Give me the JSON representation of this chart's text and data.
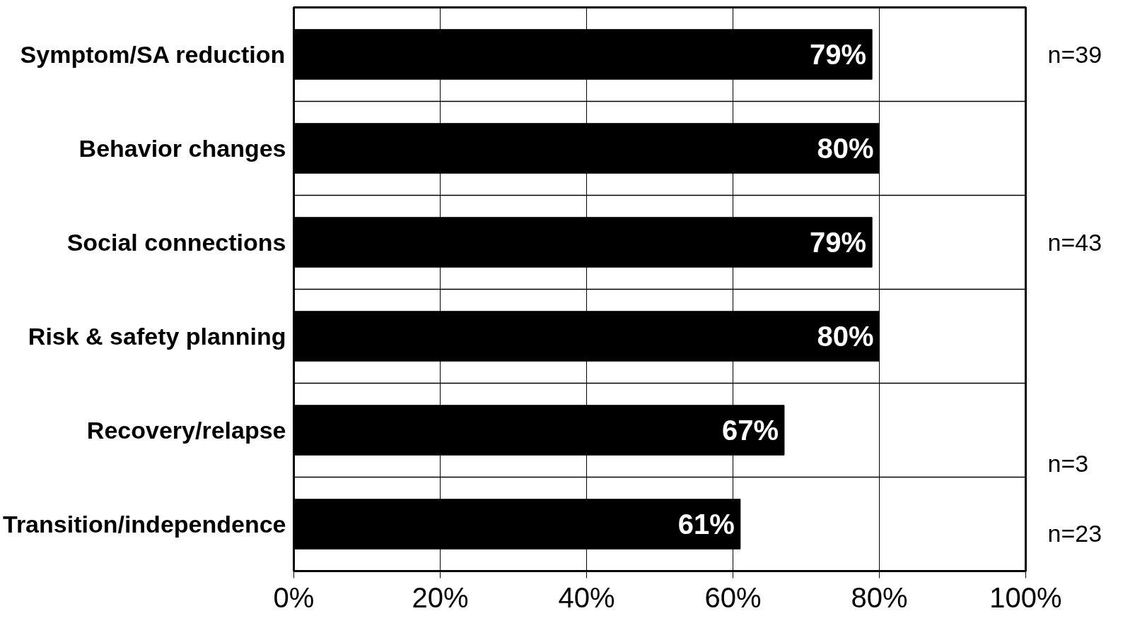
{
  "chart_data": {
    "type": "bar",
    "orientation": "horizontal",
    "categories": [
      "Symptom/SA reduction",
      "Behavior changes",
      "Social connections",
      "Risk & safety planning",
      "Recovery/relapse",
      "Transition/independence"
    ],
    "values": [
      79,
      80,
      79,
      80,
      67,
      61
    ],
    "color": "#000000",
    "value_labels": [
      "79%",
      "80%",
      "79%",
      "80%",
      "67%",
      "61%"
    ],
    "xlim": [
      0,
      100
    ],
    "xticks": [
      {
        "value": 0,
        "label": "0%"
      },
      {
        "value": 20,
        "label": "20%"
      },
      {
        "value": 40,
        "label": "40%"
      },
      {
        "value": 60,
        "label": "60%"
      },
      {
        "value": 80,
        "label": "80%"
      },
      {
        "value": 100,
        "label": "100%"
      }
    ],
    "grid": true,
    "annotations": [
      "n=39",
      "n=43",
      "n=3",
      "n=23"
    ]
  }
}
